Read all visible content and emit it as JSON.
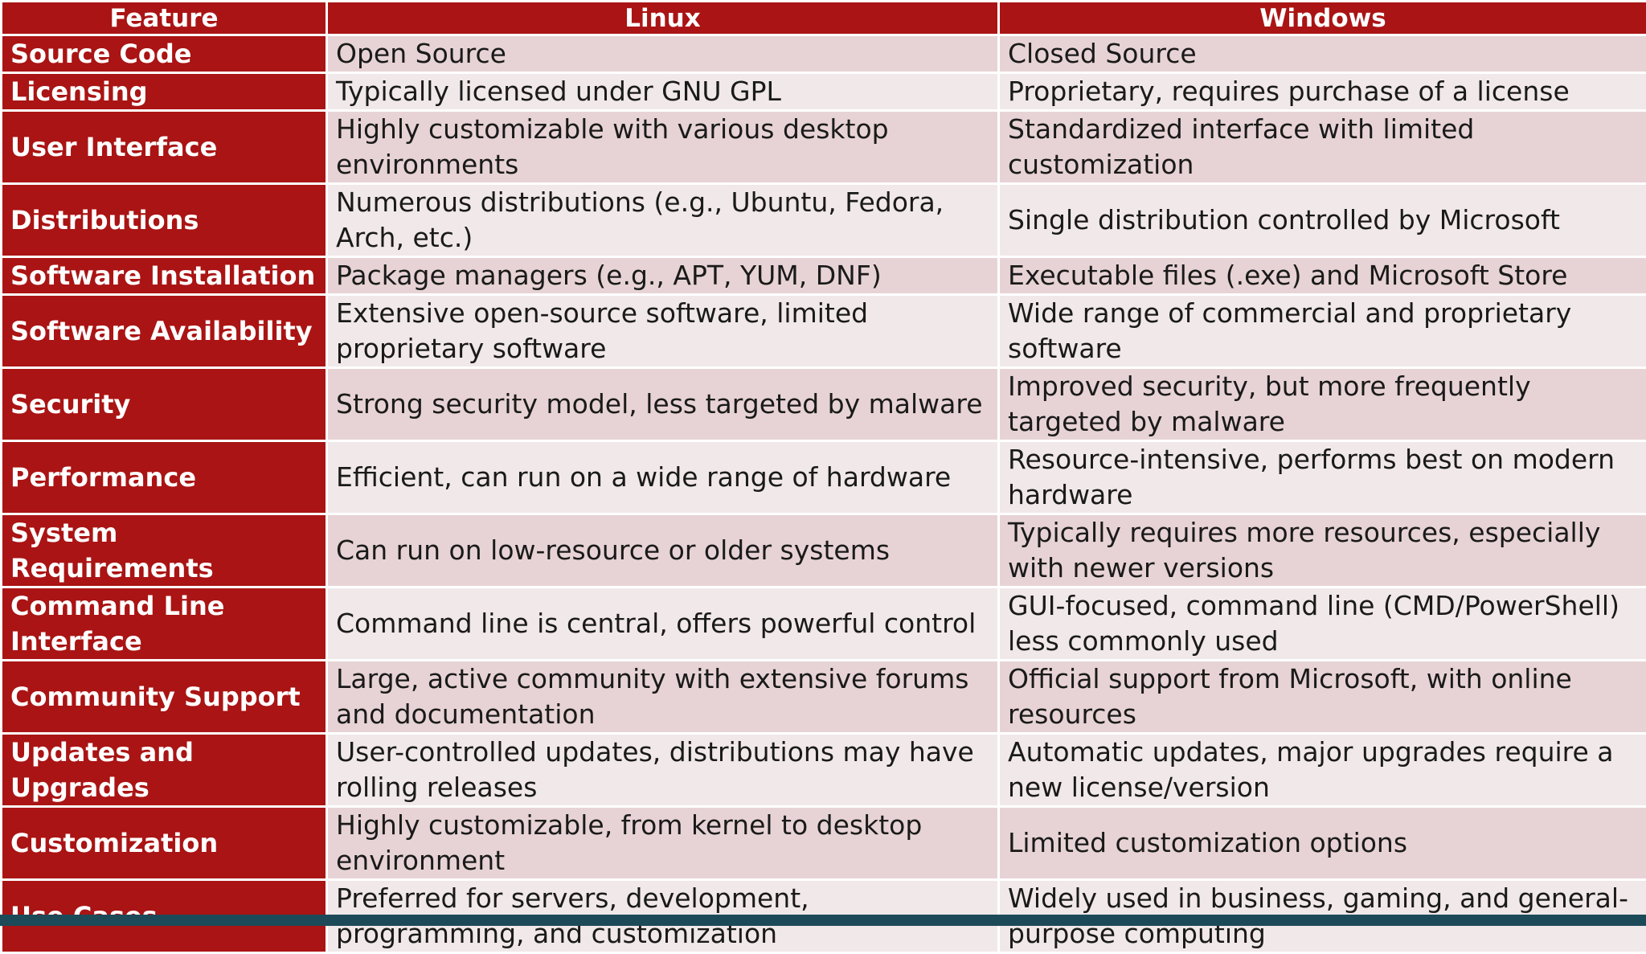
{
  "table": {
    "headers": [
      "Feature",
      "Linux",
      "Windows"
    ],
    "rows": [
      {
        "feature": "Source Code",
        "linux": "Open Source",
        "windows": "Closed Source"
      },
      {
        "feature": "Licensing",
        "linux": "Typically licensed under GNU GPL",
        "windows": "Proprietary, requires purchase of a license"
      },
      {
        "feature": "User Interface",
        "linux": "Highly customizable with various desktop environments",
        "windows": "Standardized interface with limited customization"
      },
      {
        "feature": "Distributions",
        "linux": "Numerous distributions (e.g., Ubuntu, Fedora, Arch, etc.)",
        "windows": "Single distribution controlled by Microsoft"
      },
      {
        "feature": "Software Installation",
        "linux": "Package managers (e.g., APT, YUM, DNF)",
        "windows": "Executable files (.exe) and Microsoft Store"
      },
      {
        "feature": "Software Availability",
        "linux": "Extensive open-source software, limited proprietary software",
        "windows": "Wide range of commercial and proprietary software"
      },
      {
        "feature": "Security",
        "linux": "Strong security model, less targeted by malware",
        "windows": "Improved security, but more frequently targeted by malware"
      },
      {
        "feature": "Performance",
        "linux": "Efficient, can run on a wide range of hardware",
        "windows": "Resource-intensive, performs best on modern hardware"
      },
      {
        "feature": "System Requirements",
        "linux": "Can run on low-resource or older systems",
        "windows": "Typically requires more resources, especially with newer versions"
      },
      {
        "feature": "Command Line Interface",
        "linux": "Command line is central, offers powerful control",
        "windows": "GUI-focused, command line (CMD/PowerShell) less commonly used"
      },
      {
        "feature": "Community Support",
        "linux": "Large, active community with extensive forums and documentation",
        "windows": "Official support from Microsoft, with online resources"
      },
      {
        "feature": "Updates and Upgrades",
        "linux": "User-controlled updates, distributions may have rolling releases",
        "windows": "Automatic updates, major upgrades require a new license/version"
      },
      {
        "feature": "Customization",
        "linux": "Highly customizable, from kernel to desktop environment",
        "windows": "Limited customization options"
      },
      {
        "feature": "Use Cases",
        "linux": "Preferred for servers, development, programming, and customization",
        "windows": "Widely used in business, gaming, and general-purpose computing"
      }
    ]
  },
  "colors": {
    "header_bg": "#aa1414",
    "row_a": "#e7d3d5",
    "row_b": "#f1e8e9",
    "bottom_band": "#1c4a58"
  }
}
